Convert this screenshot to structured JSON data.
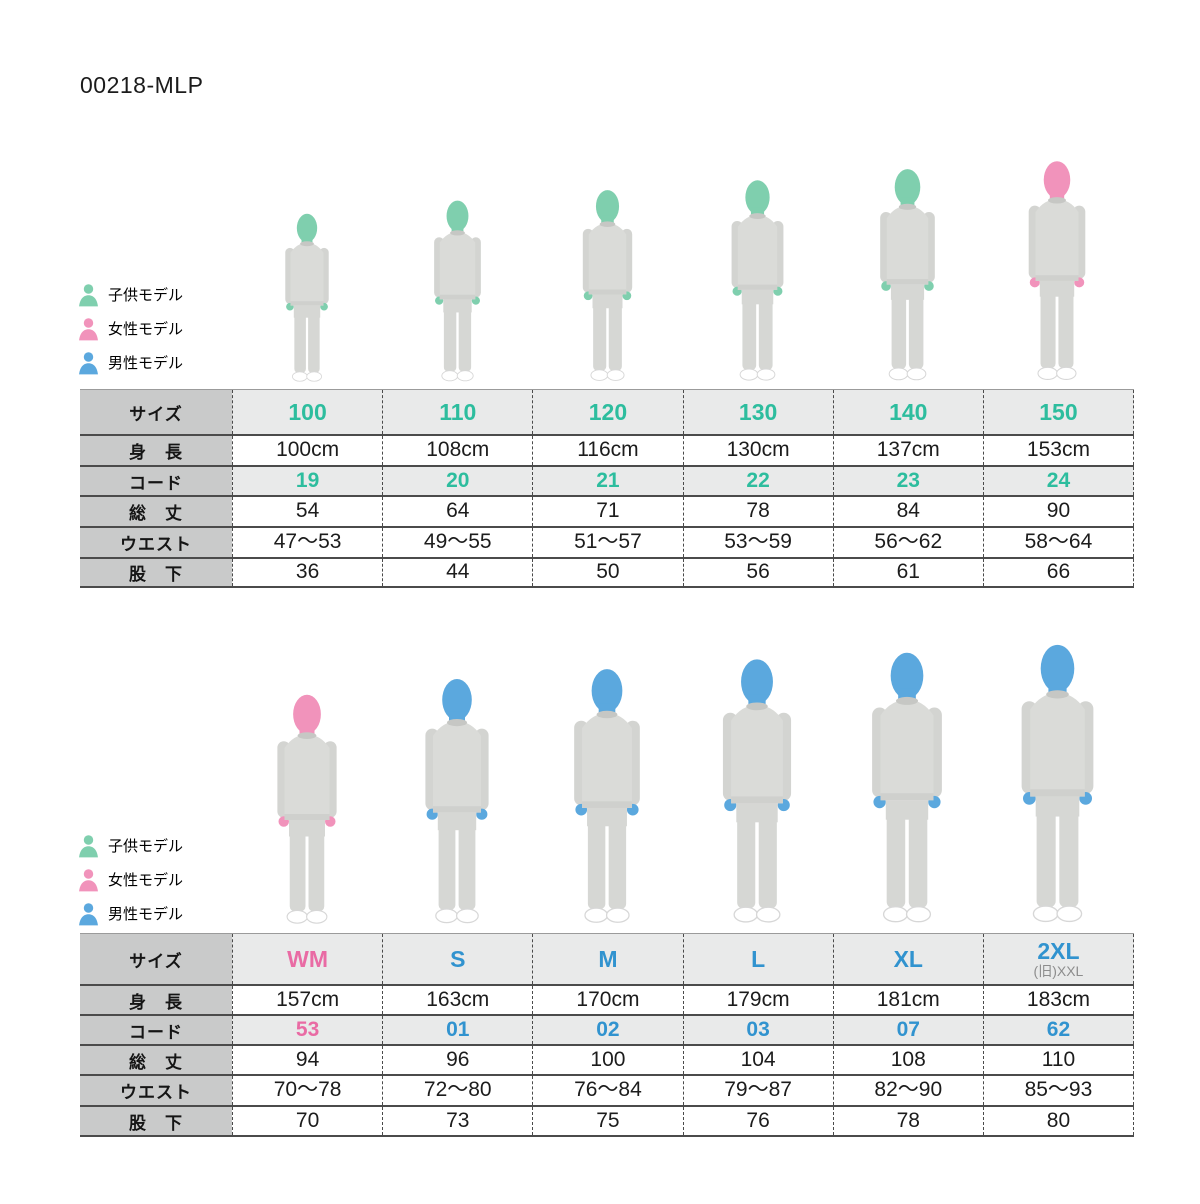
{
  "title": "00218-MLP",
  "legend": {
    "items": [
      {
        "id": "child",
        "label": "子供モデル"
      },
      {
        "id": "female",
        "label": "女性モデル"
      },
      {
        "id": "male",
        "label": "男性モデル"
      }
    ]
  },
  "colors": {
    "teal": "#2dbd9e",
    "pink": "#e96ba4",
    "blue": "#3193cf",
    "child_model": "#7fcfae",
    "female_model": "#f193bb",
    "male_model": "#5ba8de",
    "sub_gray": "#8d8d8d",
    "label_col_bg": "#c9caca",
    "shaded_row_bg": "#e9eaea",
    "row_line": "#4b4b4b"
  },
  "sections": [
    {
      "id": "kids",
      "models": [
        "child",
        "child",
        "child",
        "child",
        "child",
        "female"
      ],
      "table": {
        "row_labels": [
          "サイズ",
          "身　長",
          "コード",
          "総　丈",
          "ウエスト",
          "股　下"
        ],
        "columns": [
          {
            "size": "100",
            "accent": "teal",
            "height": "100cm",
            "code": "19",
            "total_length": "54",
            "waist": "47〜53",
            "inseam": "36"
          },
          {
            "size": "110",
            "accent": "teal",
            "height": "108cm",
            "code": "20",
            "total_length": "64",
            "waist": "49〜55",
            "inseam": "44"
          },
          {
            "size": "120",
            "accent": "teal",
            "height": "116cm",
            "code": "21",
            "total_length": "71",
            "waist": "51〜57",
            "inseam": "50"
          },
          {
            "size": "130",
            "accent": "teal",
            "height": "130cm",
            "code": "22",
            "total_length": "78",
            "waist": "53〜59",
            "inseam": "56"
          },
          {
            "size": "140",
            "accent": "teal",
            "height": "137cm",
            "code": "23",
            "total_length": "84",
            "waist": "56〜62",
            "inseam": "61"
          },
          {
            "size": "150",
            "accent": "teal",
            "height": "153cm",
            "code": "24",
            "total_length": "90",
            "waist": "58〜64",
            "inseam": "66"
          }
        ]
      }
    },
    {
      "id": "adults",
      "models": [
        "female",
        "male",
        "male",
        "male",
        "male",
        "male"
      ],
      "table": {
        "row_labels": [
          "サイズ",
          "身　長",
          "コード",
          "総　丈",
          "ウエスト",
          "股　下"
        ],
        "columns": [
          {
            "size": "WM",
            "accent": "pink",
            "height": "157cm",
            "code": "53",
            "total_length": "94",
            "waist": "70〜78",
            "inseam": "70"
          },
          {
            "size": "S",
            "accent": "blue",
            "height": "163cm",
            "code": "01",
            "total_length": "96",
            "waist": "72〜80",
            "inseam": "73"
          },
          {
            "size": "M",
            "accent": "blue",
            "height": "170cm",
            "code": "02",
            "total_length": "100",
            "waist": "76〜84",
            "inseam": "75"
          },
          {
            "size": "L",
            "accent": "blue",
            "height": "179cm",
            "code": "03",
            "total_length": "104",
            "waist": "79〜87",
            "inseam": "76"
          },
          {
            "size": "XL",
            "accent": "blue",
            "height": "181cm",
            "code": "07",
            "total_length": "108",
            "waist": "82〜90",
            "inseam": "78"
          },
          {
            "size": "2XL",
            "size_sub": "(旧)XXL",
            "accent": "blue",
            "height": "183cm",
            "code": "62",
            "total_length": "110",
            "waist": "85〜93",
            "inseam": "80"
          }
        ]
      }
    }
  ]
}
